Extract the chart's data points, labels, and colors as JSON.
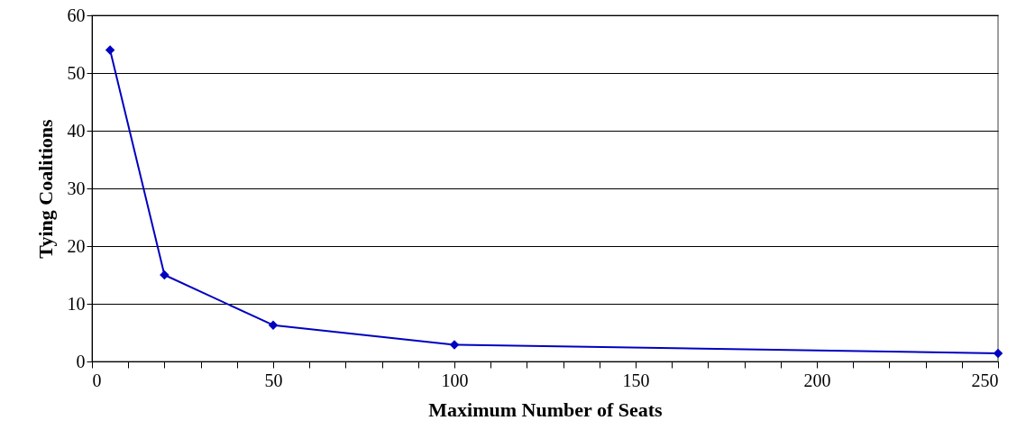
{
  "chart_data": {
    "type": "line",
    "xlabel": "Maximum Number of Seats",
    "ylabel": "Tying Coalitions",
    "x": [
      5,
      20,
      50,
      100,
      250
    ],
    "series": [
      {
        "color": "#0000c0",
        "values": [
          54,
          15,
          6.3,
          2.9,
          1.4
        ]
      }
    ],
    "xlim": [
      0,
      250
    ],
    "ylim": [
      0,
      60
    ],
    "xticks": [
      0,
      {
        "value": 10,
        "label": null
      },
      {
        "value": 20,
        "label": null
      },
      {
        "value": 30,
        "label": null
      },
      {
        "value": 40,
        "label": null
      },
      50,
      {
        "value": 60,
        "label": null
      },
      {
        "value": 70,
        "label": null
      },
      {
        "value": 80,
        "label": null
      },
      {
        "value": 90,
        "label": null
      },
      100,
      {
        "value": 110,
        "label": null
      },
      {
        "value": 120,
        "label": null
      },
      {
        "value": 130,
        "label": null
      },
      {
        "value": 140,
        "label": null
      },
      150,
      {
        "value": 160,
        "label": null
      },
      {
        "value": 170,
        "label": null
      },
      {
        "value": 180,
        "label": null
      },
      {
        "value": 190,
        "label": null
      },
      200,
      {
        "value": 210,
        "label": null
      },
      {
        "value": 220,
        "label": null
      },
      {
        "value": 230,
        "label": null
      },
      {
        "value": 240,
        "label": null
      },
      250
    ],
    "yticks": [
      0,
      10,
      20,
      30,
      40,
      50,
      60
    ],
    "grid": "y",
    "marker": "diamond",
    "line_style": "solid"
  }
}
